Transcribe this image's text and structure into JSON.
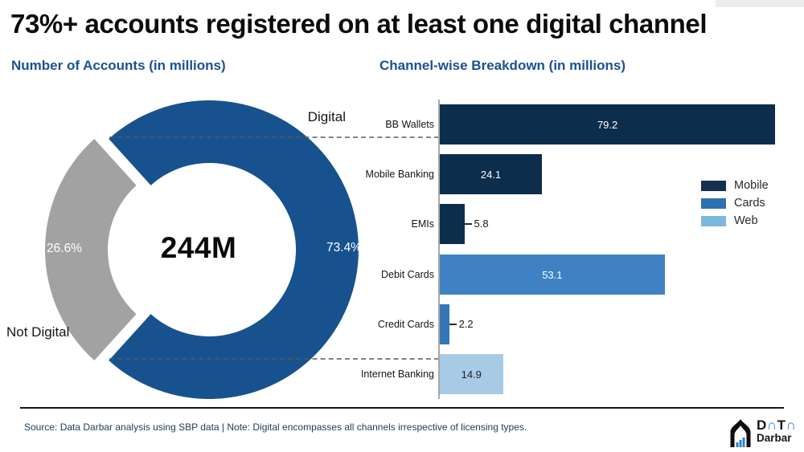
{
  "page": {
    "title": "73%+ accounts registered on at least one digital channel",
    "source_note": "Source: Data Darbar analysis using SBP data | Note: Digital encompasses all channels irrespective of licensing types.",
    "brand": {
      "top": "DaTa",
      "bottom": "Darbar"
    }
  },
  "chart_data": [
    {
      "type": "pie",
      "subtype": "donut",
      "title": "Number of Accounts (in millions)",
      "center_label": "244M",
      "slices": [
        {
          "label": "Digital",
          "value": 73.4,
          "display": "73.4%",
          "color": "#17528f",
          "exploded": false
        },
        {
          "label": "Not Digital",
          "value": 26.6,
          "display": "26.6%",
          "color": "#a2a2a2",
          "exploded": true
        }
      ]
    },
    {
      "type": "bar",
      "orientation": "horizontal",
      "title": "Channel-wise Breakdown (in millions)",
      "xlim": [
        0,
        82
      ],
      "grid": false,
      "bars": [
        {
          "category": "BB Wallets",
          "value": 79.2,
          "display": "79.2",
          "group": "Mobile",
          "color": "#0d2d4c"
        },
        {
          "category": "Mobile Banking",
          "value": 24.1,
          "display": "24.1",
          "group": "Mobile",
          "color": "#0d2d4c"
        },
        {
          "category": "EMIs",
          "value": 5.8,
          "display": "5.8",
          "group": "Mobile",
          "color": "#0d2d4c"
        },
        {
          "category": "Debit Cards",
          "value": 53.1,
          "display": "53.1",
          "group": "Cards",
          "color": "#3e82c4"
        },
        {
          "category": "Credit Cards",
          "value": 2.2,
          "display": "2.2",
          "group": "Cards",
          "color": "#3377b8"
        },
        {
          "category": "Internet Banking",
          "value": 14.9,
          "display": "14.9",
          "group": "Web",
          "color": "#a7cbe5"
        }
      ],
      "legend": {
        "position": "right",
        "entries": [
          {
            "label": "Mobile",
            "color": "#13304f"
          },
          {
            "label": "Cards",
            "color": "#2d72ae"
          },
          {
            "label": "Web",
            "color": "#7cb7dd"
          }
        ]
      }
    }
  ]
}
